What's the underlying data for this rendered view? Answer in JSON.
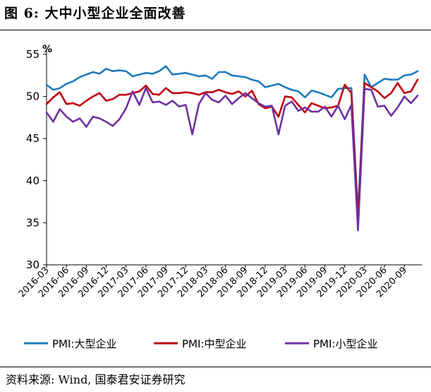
{
  "figure": {
    "title": "图 6:  大中小型企业全面改善",
    "source": "资料来源:  Wind,  国泰君安证券研究"
  },
  "chart_data": {
    "type": "line",
    "title": "图 6:  大中小型企业全面改善",
    "unit_label": "%",
    "ylim": [
      30,
      55
    ],
    "yticks": [
      30,
      35,
      40,
      45,
      50,
      55
    ],
    "grid": false,
    "legend_placement": "bottom",
    "x": [
      "2016-03",
      "2016-04",
      "2016-05",
      "2016-06",
      "2016-07",
      "2016-08",
      "2016-09",
      "2016-10",
      "2016-11",
      "2016-12",
      "2017-01",
      "2017-02",
      "2017-03",
      "2017-04",
      "2017-05",
      "2017-06",
      "2017-07",
      "2017-08",
      "2017-09",
      "2017-10",
      "2017-11",
      "2017-12",
      "2018-01",
      "2018-02",
      "2018-03",
      "2018-04",
      "2018-05",
      "2018-06",
      "2018-07",
      "2018-08",
      "2018-09",
      "2018-10",
      "2018-11",
      "2018-12",
      "2019-01",
      "2019-02",
      "2019-03",
      "2019-04",
      "2019-05",
      "2019-06",
      "2019-07",
      "2019-08",
      "2019-09",
      "2019-10",
      "2019-11",
      "2019-12",
      "2020-01",
      "2020-02",
      "2020-03",
      "2020-04",
      "2020-05",
      "2020-06",
      "2020-07",
      "2020-08",
      "2020-09",
      "2020-10",
      "2020-11"
    ],
    "xtick_labels": [
      "2016-03",
      "2016-06",
      "2016-09",
      "2016-12",
      "2017-03",
      "2017-06",
      "2017-09",
      "2017-12",
      "2018-03",
      "2018-06",
      "2018-09",
      "2018-12",
      "2019-03",
      "2019-06",
      "2019-09",
      "2019-12",
      "2020-03",
      "2020-06",
      "2020-09"
    ],
    "series": [
      {
        "name": "PMI:大型企业",
        "color": "#1f7bbd",
        "values": [
          51.4,
          50.8,
          51.0,
          51.5,
          51.8,
          52.3,
          52.6,
          52.9,
          52.7,
          53.3,
          53.0,
          53.1,
          53.0,
          52.4,
          52.6,
          52.8,
          52.7,
          53.0,
          53.6,
          52.6,
          52.7,
          52.8,
          52.6,
          52.4,
          52.5,
          52.1,
          52.9,
          52.9,
          52.5,
          52.4,
          52.3,
          52.0,
          51.8,
          51.1,
          51.3,
          51.5,
          51.1,
          50.8,
          50.6,
          49.9,
          50.7,
          50.5,
          50.2,
          49.9,
          50.9,
          51.0,
          51.0,
          36.0,
          52.6,
          51.1,
          51.6,
          52.1,
          52.0,
          52.0,
          52.5,
          52.6,
          53.0
        ]
      },
      {
        "name": "PMI:中型企业",
        "color": "#c0000f",
        "values": [
          49.1,
          49.9,
          50.5,
          49.1,
          49.2,
          48.9,
          49.5,
          50.0,
          50.4,
          49.5,
          49.7,
          50.2,
          50.2,
          50.4,
          50.6,
          51.3,
          50.3,
          50.2,
          51.0,
          50.4,
          50.4,
          50.5,
          50.4,
          50.2,
          50.5,
          50.5,
          50.8,
          50.5,
          50.3,
          50.6,
          50.0,
          50.7,
          49.1,
          48.6,
          48.8,
          47.6,
          50.0,
          49.9,
          49.0,
          48.1,
          49.2,
          48.9,
          48.6,
          48.7,
          48.9,
          51.4,
          50.4,
          35.5,
          51.6,
          51.1,
          50.6,
          49.8,
          50.4,
          51.6,
          50.4,
          50.6,
          52.0
        ]
      },
      {
        "name": "PMI:小型企业",
        "color": "#7030a0",
        "values": [
          48.1,
          47.0,
          48.5,
          47.6,
          47.0,
          47.4,
          46.4,
          47.6,
          47.4,
          47.0,
          46.5,
          47.3,
          48.6,
          50.6,
          49.0,
          51.0,
          49.3,
          49.4,
          49.0,
          49.5,
          48.8,
          49.0,
          45.5,
          49.1,
          50.4,
          49.6,
          49.3,
          50.1,
          49.1,
          49.8,
          50.4,
          49.8,
          49.2,
          48.8,
          48.9,
          45.5,
          48.9,
          49.4,
          48.3,
          48.7,
          48.2,
          48.2,
          48.8,
          47.6,
          48.9,
          47.3,
          49.0,
          34.1,
          50.9,
          50.8,
          48.8,
          48.9,
          47.7,
          48.7,
          50.0,
          49.2,
          50.1
        ]
      }
    ]
  }
}
